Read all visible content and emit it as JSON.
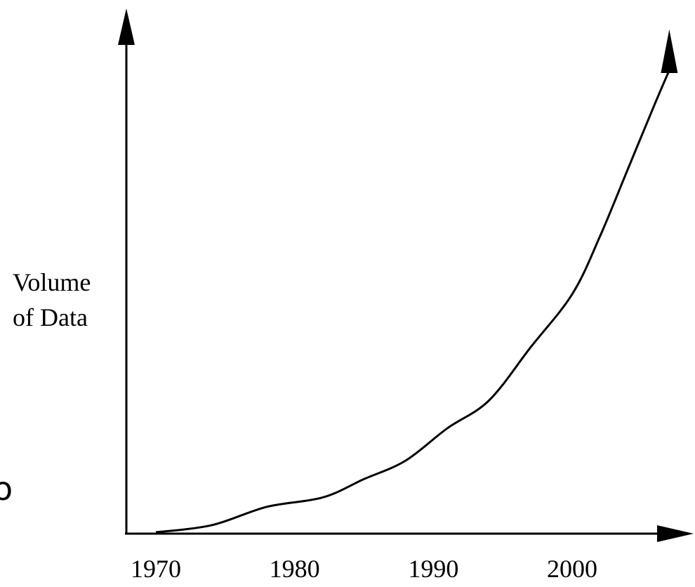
{
  "chart_data": {
    "type": "line",
    "title": "",
    "xlabel": "",
    "ylabel": [
      "Volume",
      "of Data"
    ],
    "x_ticks": [
      "1970",
      "1980",
      "1990",
      "2000"
    ],
    "x": [
      1970,
      1974,
      1978,
      1982,
      1985,
      1988,
      1991,
      1994,
      1997,
      2000,
      2002,
      2004,
      2006,
      2007
    ],
    "y": [
      0.0,
      1.5,
      5.5,
      7.5,
      11.5,
      15.5,
      22.5,
      28.5,
      40.0,
      51.5,
      64.0,
      78.5,
      93.0,
      100.0
    ],
    "xlim": [
      1970,
      2008
    ],
    "ylim": [
      0,
      105
    ],
    "y_axis_values_shown": false,
    "grid": false,
    "axis_arrows": true
  },
  "stray_edge_text": "o"
}
